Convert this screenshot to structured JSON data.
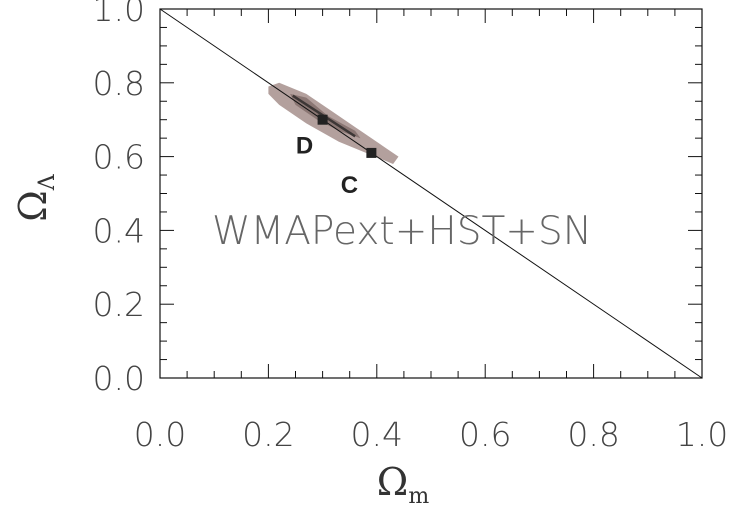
{
  "chart_data": {
    "type": "scatter",
    "title": "",
    "xlabel": "Ω",
    "xlabel_sub": "m",
    "ylabel": "Ω",
    "ylabel_sub": "Λ",
    "xlim": [
      0.0,
      1.0
    ],
    "ylim": [
      0.0,
      1.0
    ],
    "x_ticks": [
      "0.0",
      "0.2",
      "0.4",
      "0.6",
      "0.8",
      "1.0"
    ],
    "y_ticks": [
      "0.0",
      "0.2",
      "0.4",
      "0.6",
      "0.8",
      "1.0"
    ],
    "grid": false,
    "annotation": "WMAPext+HST+SN",
    "reference_line": {
      "x": [
        0.0,
        1.0
      ],
      "y": [
        1.0,
        0.0
      ]
    },
    "contours": {
      "outer": [
        [
          0.2,
          0.79
        ],
        [
          0.22,
          0.8
        ],
        [
          0.27,
          0.77
        ],
        [
          0.32,
          0.72
        ],
        [
          0.37,
          0.67
        ],
        [
          0.42,
          0.62
        ],
        [
          0.44,
          0.6
        ],
        [
          0.43,
          0.58
        ],
        [
          0.38,
          0.61
        ],
        [
          0.33,
          0.64
        ],
        [
          0.27,
          0.69
        ],
        [
          0.22,
          0.74
        ],
        [
          0.2,
          0.77
        ]
      ],
      "inner": [
        [
          0.24,
          0.77
        ],
        [
          0.27,
          0.76
        ],
        [
          0.31,
          0.71
        ],
        [
          0.36,
          0.67
        ],
        [
          0.37,
          0.65
        ],
        [
          0.33,
          0.67
        ],
        [
          0.29,
          0.7
        ],
        [
          0.25,
          0.74
        ]
      ],
      "colors": {
        "outer": "#b3a09d",
        "inner": "#8a7673",
        "core": "#3d3736"
      }
    },
    "points": [
      {
        "label": "D",
        "x": 0.3,
        "y": 0.7
      },
      {
        "label": "C",
        "x": 0.39,
        "y": 0.61
      }
    ]
  }
}
